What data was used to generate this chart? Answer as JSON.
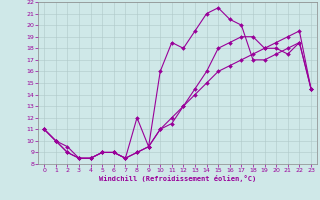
{
  "xlabel": "Windchill (Refroidissement éolien,°C)",
  "background_color": "#cfe8e8",
  "line_color": "#990099",
  "grid_color": "#b0c8c8",
  "spine_color": "#888888",
  "xlim": [
    -0.5,
    23.5
  ],
  "ylim": [
    8,
    22
  ],
  "xticks": [
    0,
    1,
    2,
    3,
    4,
    5,
    6,
    7,
    8,
    9,
    10,
    11,
    12,
    13,
    14,
    15,
    16,
    17,
    18,
    19,
    20,
    21,
    22,
    23
  ],
  "yticks": [
    8,
    9,
    10,
    11,
    12,
    13,
    14,
    15,
    16,
    17,
    18,
    19,
    20,
    21,
    22
  ],
  "line1_x": [
    0,
    1,
    2,
    3,
    4,
    5,
    6,
    7,
    8,
    9,
    10,
    11,
    12,
    13,
    14,
    15,
    16,
    17,
    18,
    19,
    20,
    21,
    22,
    23
  ],
  "line1_y": [
    11,
    10,
    9,
    8.5,
    8.5,
    9,
    9,
    8.5,
    9,
    9.5,
    11,
    11.5,
    13,
    14.5,
    16,
    18,
    18.5,
    19,
    19,
    18,
    18,
    17.5,
    18.5,
    14.5
  ],
  "line2_x": [
    0,
    1,
    2,
    3,
    4,
    5,
    6,
    7,
    8,
    9,
    10,
    11,
    12,
    13,
    14,
    15,
    16,
    17,
    18,
    19,
    20,
    21,
    22,
    23
  ],
  "line2_y": [
    11,
    10,
    9,
    8.5,
    8.5,
    9,
    9,
    8.5,
    12,
    9.5,
    16,
    18.5,
    18,
    19.5,
    21,
    21.5,
    20.5,
    20,
    17,
    17,
    17.5,
    18,
    18.5,
    14.5
  ],
  "line3_x": [
    0,
    1,
    2,
    3,
    4,
    5,
    6,
    7,
    8,
    9,
    10,
    11,
    12,
    13,
    14,
    15,
    16,
    17,
    18,
    19,
    20,
    21,
    22,
    23
  ],
  "line3_y": [
    11,
    10,
    9.5,
    8.5,
    8.5,
    9,
    9,
    8.5,
    9,
    9.5,
    11,
    12,
    13,
    14,
    15,
    16,
    16.5,
    17,
    17.5,
    18,
    18.5,
    19,
    19.5,
    14.5
  ],
  "marker": "D",
  "markersize": 2,
  "linewidth": 0.8,
  "tick_fontsize": 4.5,
  "xlabel_fontsize": 5.0
}
